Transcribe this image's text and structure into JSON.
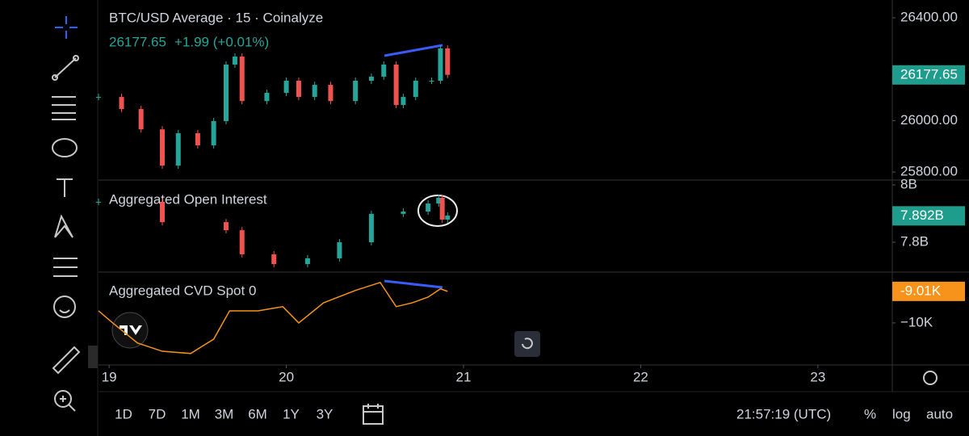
{
  "chart_data": [
    {
      "type": "candlestick",
      "title": "BTC/USD Average · 15 · Coinalyze",
      "last": "26177.65",
      "change": "+1.99 (+0.01%)",
      "x": [
        18.94,
        19.07,
        19.18,
        19.3,
        19.39,
        19.5,
        19.59,
        19.66,
        19.71,
        19.75,
        19.89,
        20.0,
        20.07,
        20.16,
        20.25,
        20.39,
        20.48,
        20.55,
        20.62,
        20.66,
        20.73,
        20.82,
        20.87,
        20.91
      ],
      "values": [
        26092,
        26045,
        25966,
        25825,
        25951,
        25904,
        25998,
        26218,
        26249,
        26076,
        26108,
        26155,
        26092,
        26139,
        26076,
        26155,
        26171,
        26218,
        26061,
        26092,
        26155,
        26155,
        26281,
        26178
      ],
      "up_color": "#26a69a",
      "down_color": "#ef5350",
      "ylim": [
        25772,
        26469
      ],
      "yticks": [
        {
          "value": 26400,
          "label": "26400.00"
        },
        {
          "value": 26000,
          "label": "26000.00"
        },
        {
          "value": 25800,
          "label": "25800.00"
        }
      ],
      "price_tag": {
        "value": 26177.65,
        "label": "26177.65"
      },
      "tag_color": "#1f9d8c",
      "xlim": [
        18.94,
        23.42
      ],
      "xticks": [
        19,
        20,
        21,
        22,
        23
      ]
    },
    {
      "type": "candlestick",
      "title": "Aggregated Open Interest",
      "x": [
        18.94,
        19.3,
        19.66,
        19.75,
        19.93,
        20.12,
        20.3,
        20.48,
        20.66,
        20.8,
        20.86,
        20.88,
        20.91
      ],
      "values": [
        7.941,
        7.87,
        7.842,
        7.758,
        7.724,
        7.744,
        7.8,
        7.899,
        7.907,
        7.935,
        7.955,
        7.879,
        7.893
      ],
      "up_color": "#26a69a",
      "down_color": "#ef5350",
      "ylim": [
        7.696,
        8.014
      ],
      "yticks": [
        {
          "value": 8,
          "label": "8B"
        },
        {
          "value": 7.8,
          "label": "7.8B"
        }
      ],
      "price_tag": {
        "value": 7.892,
        "label": "7.892B"
      },
      "tag_color": "#1f9d8c"
    },
    {
      "type": "line",
      "title": "Aggregated CVD Spot 0",
      "color": "#f7931a",
      "x": [
        18.94,
        19.02,
        19.16,
        19.3,
        19.46,
        19.59,
        19.68,
        19.84,
        19.98,
        20.07,
        20.21,
        20.39,
        20.53,
        20.62,
        20.71,
        20.8,
        20.87,
        20.91
      ],
      "values": [
        -9.62,
        -10.0,
        -10.63,
        -10.89,
        -10.96,
        -10.51,
        -9.62,
        -9.62,
        -9.49,
        -10.0,
        -9.37,
        -8.98,
        -8.73,
        -9.49,
        -9.37,
        -9.19,
        -8.93,
        -9.01
      ],
      "ylim": [
        -11.32,
        -8.43
      ],
      "yticks": [
        {
          "value": -10,
          "label": "−10K"
        }
      ],
      "price_tag": {
        "value": -9.01,
        "label": "-9.01K"
      },
      "tag_color": "#f7931a"
    }
  ],
  "ui": {
    "ranges": [
      "1D",
      "7D",
      "1M",
      "3M",
      "6M",
      "1Y",
      "3Y"
    ],
    "clock": "21:57:19 (UTC)",
    "percent": "%",
    "log": "log",
    "auto": "auto"
  }
}
